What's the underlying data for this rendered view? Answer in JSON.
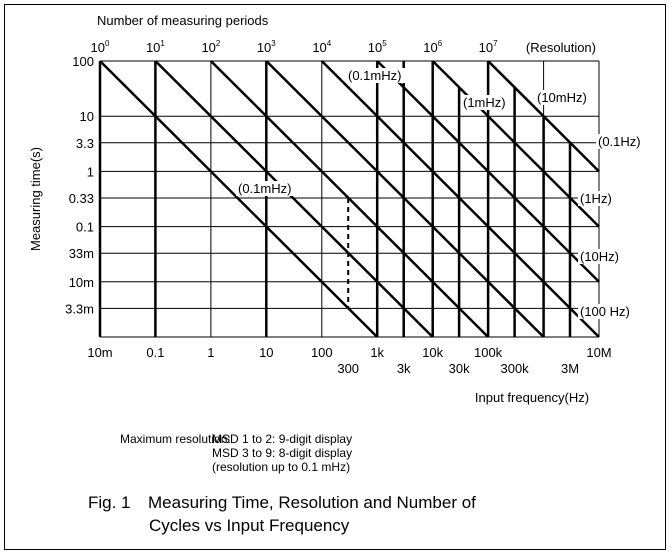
{
  "chart_data": {
    "type": "line",
    "title": "Fig. 1  Measuring Time, Resolution and Number of Cycles vs Input Frequency",
    "xlabel": "Input frequency(Hz)",
    "ylabel": "Measuring time(s)",
    "x_scale": "log",
    "y_scale": "log",
    "xlim": [
      0.01,
      10000000
    ],
    "ylim": [
      0.001,
      100
    ],
    "x_ticks_top_row": [
      "10m",
      "0.1",
      "1",
      "10",
      "100",
      "1k",
      "10k",
      "100k",
      "10M"
    ],
    "x_ticks_bottom_row": [
      "300",
      "3k",
      "30k",
      "300k",
      "3M"
    ],
    "y_ticks": [
      "100",
      "10",
      "3.3",
      "1",
      "0.33",
      "0.1",
      "33m",
      "10m",
      "3.3m"
    ],
    "top_axis_title": "Number of measuring periods",
    "top_axis_ticks": [
      {
        "base": "10",
        "exp": "0"
      },
      {
        "base": "10",
        "exp": "1"
      },
      {
        "base": "10",
        "exp": "2"
      },
      {
        "base": "10",
        "exp": "3"
      },
      {
        "base": "10",
        "exp": "4"
      },
      {
        "base": "10",
        "exp": "5"
      },
      {
        "base": "10",
        "exp": "6"
      },
      {
        "base": "10",
        "exp": "7"
      }
    ],
    "resolution_header": "(Resolution)",
    "resolution_labels": [
      "(0.1mHz)",
      "(1mHz)",
      "(10mHz)",
      "(0.1Hz)",
      "(0.1mHz)",
      "(1Hz)",
      "(10Hz)",
      "(100 Hz)"
    ],
    "grid": true
  },
  "notes": {
    "label": "Maximum resolution:",
    "line1": "MSD 1 to 2: 9-digit display",
    "line2": "MSD 3 to 9: 8-digit display",
    "line3": "(resolution up to 0.1 mHz)"
  },
  "caption": {
    "number": "Fig. 1",
    "line1": "Measuring Time, Resolution and Number of",
    "line2": "Cycles vs Input Frequency"
  }
}
